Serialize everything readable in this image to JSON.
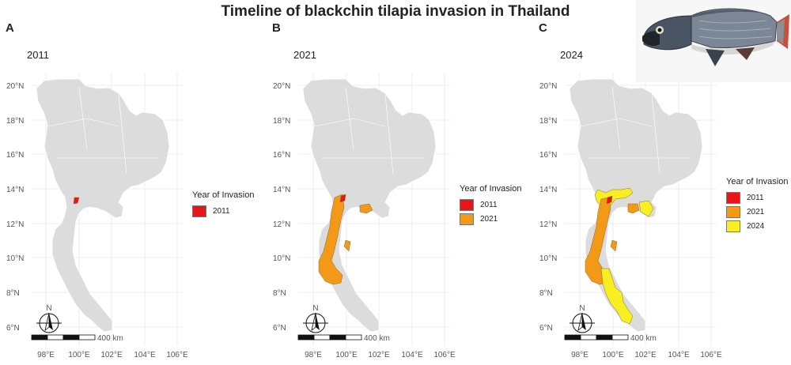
{
  "title": "Timeline of blackchin tilapia invasion in Thailand",
  "colors": {
    "land": "#dcdcdc",
    "y2011": "#e8161b",
    "y2021": "#f29a18",
    "y2024": "#f8ef22",
    "grid": "#ececec"
  },
  "lat_ticks": [
    "20°N",
    "18°N",
    "16°N",
    "14°N",
    "12°N",
    "10°N",
    "8°N",
    "6°N"
  ],
  "lon_ticks": [
    "98°E",
    "100°E",
    "102°E",
    "104°E",
    "106°E"
  ],
  "legend_title": "Year of Invasion",
  "scale_label": "400 km",
  "north_label": "N",
  "panels": [
    {
      "letter": "A",
      "year": "2011",
      "legend": [
        {
          "label": "2011",
          "color": "#e8161b"
        }
      ]
    },
    {
      "letter": "B",
      "year": "2021",
      "legend": [
        {
          "label": "2011",
          "color": "#e8161b"
        },
        {
          "label": "2021",
          "color": "#f29a18"
        }
      ]
    },
    {
      "letter": "C",
      "year": "2024",
      "legend": [
        {
          "label": "2011",
          "color": "#e8161b"
        },
        {
          "label": "2021",
          "color": "#f29a18"
        },
        {
          "label": "2024",
          "color": "#f8ef22"
        }
      ]
    }
  ],
  "fish_image": "blackchin-tilapia-photo"
}
